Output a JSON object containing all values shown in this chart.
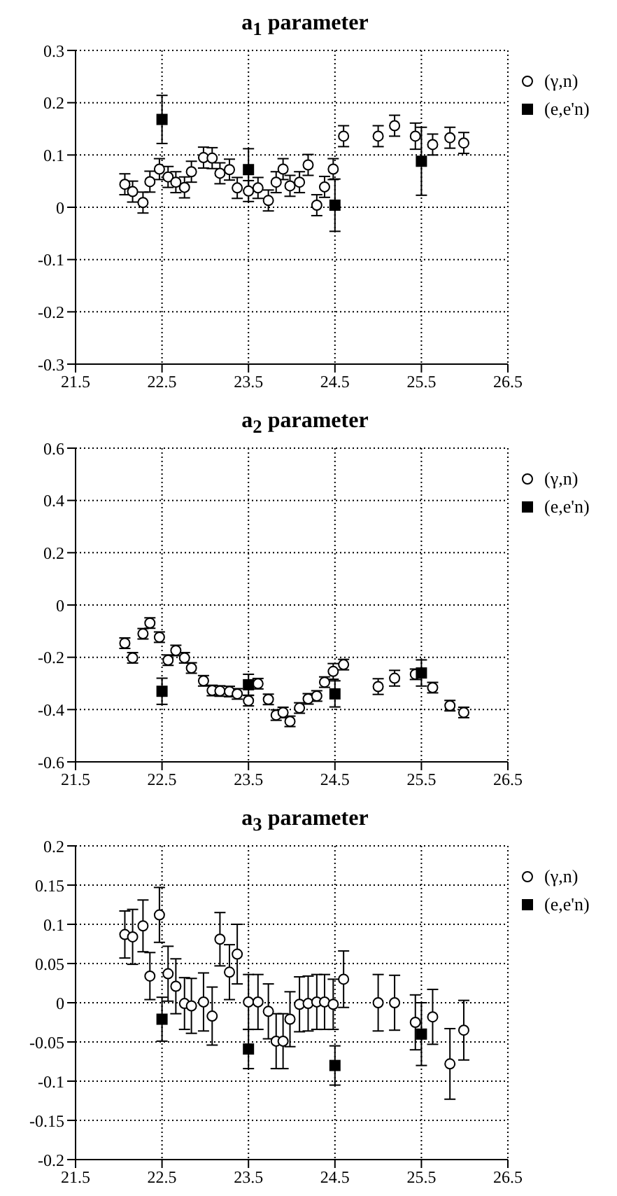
{
  "chart_data": [
    {
      "type": "scatter",
      "title": "a$_{1}$ parameter",
      "xlim": [
        21.5,
        26.5
      ],
      "xticks": [
        21.5,
        22.5,
        23.5,
        24.5,
        25.5,
        26.5
      ],
      "ylim": [
        -0.3,
        0.3
      ],
      "yticks": [
        -0.3,
        -0.2,
        -0.1,
        0,
        0.1,
        0.2,
        0.3
      ],
      "grid": true,
      "legend": "top right",
      "series": [
        {
          "name": "(γ,n)",
          "color": "#000000",
          "marker": "circle",
          "x": [
            22.07,
            22.16,
            22.28,
            22.36,
            22.47,
            22.57,
            22.66,
            22.76,
            22.84,
            22.98,
            23.08,
            23.17,
            23.28,
            23.37,
            23.5,
            23.61,
            23.73,
            23.82,
            23.9,
            23.98,
            24.09,
            24.19,
            24.29,
            24.38,
            24.48,
            24.6,
            25,
            25.19,
            25.43,
            25.63,
            25.83,
            25.99
          ],
          "values": [
            0.044,
            0.03,
            0.009,
            0.049,
            0.073,
            0.058,
            0.048,
            0.038,
            0.068,
            0.095,
            0.094,
            0.065,
            0.072,
            0.037,
            0.031,
            0.037,
            0.013,
            0.048,
            0.073,
            0.041,
            0.048,
            0.081,
            0.004,
            0.039,
            0.073,
            0.136,
            0.136,
            0.156,
            0.136,
            0.12,
            0.133,
            0.123
          ],
          "errors": [
            0.02,
            0.02,
            0.02,
            0.02,
            0.02,
            0.02,
            0.02,
            0.02,
            0.02,
            0.02,
            0.02,
            0.02,
            0.02,
            0.02,
            0.02,
            0.02,
            0.02,
            0.02,
            0.02,
            0.02,
            0.02,
            0.02,
            0.02,
            0.02,
            0.02,
            0.02,
            0.02,
            0.02,
            0.025,
            0.02,
            0.02,
            0.02
          ]
        },
        {
          "name": "(e,e'n)",
          "color": "#000000",
          "marker": "square",
          "x": [
            22.5,
            23.5,
            24.5,
            25.5
          ],
          "values": [
            0.168,
            0.072,
            0.004,
            0.088
          ],
          "errors": [
            0.046,
            0.04,
            0.05,
            0.065
          ]
        }
      ]
    },
    {
      "type": "scatter",
      "title": "a$_{2}$ parameter",
      "xlim": [
        21.5,
        26.5
      ],
      "xticks": [
        21.5,
        22.5,
        23.5,
        24.5,
        25.5,
        26.5
      ],
      "ylim": [
        -0.6,
        0.6
      ],
      "yticks": [
        -0.6,
        -0.4,
        -0.2,
        0,
        0.2,
        0.4,
        0.6
      ],
      "grid": true,
      "legend": "top right",
      "series": [
        {
          "name": "(γ,n)",
          "color": "#000000",
          "marker": "circle",
          "x": [
            22.07,
            22.16,
            22.28,
            22.36,
            22.47,
            22.57,
            22.66,
            22.76,
            22.84,
            22.98,
            23.08,
            23.17,
            23.28,
            23.37,
            23.5,
            23.61,
            23.73,
            23.82,
            23.9,
            23.98,
            24.09,
            24.19,
            24.29,
            24.38,
            24.48,
            24.6,
            25,
            25.19,
            25.43,
            25.63,
            25.83,
            25.99
          ],
          "values": [
            -0.146,
            -0.202,
            -0.11,
            -0.069,
            -0.123,
            -0.211,
            -0.174,
            -0.202,
            -0.241,
            -0.29,
            -0.327,
            -0.329,
            -0.331,
            -0.34,
            -0.366,
            -0.301,
            -0.361,
            -0.421,
            -0.411,
            -0.445,
            -0.394,
            -0.359,
            -0.348,
            -0.295,
            -0.254,
            -0.228,
            -0.312,
            -0.28,
            -0.265,
            -0.316,
            -0.385,
            -0.411
          ],
          "errors": [
            0.02,
            0.02,
            0.02,
            0.02,
            0.02,
            0.02,
            0.02,
            0.02,
            0.02,
            0.02,
            0.02,
            0.02,
            0.02,
            0.02,
            0.02,
            0.02,
            0.02,
            0.02,
            0.02,
            0.02,
            0.02,
            0.02,
            0.02,
            0.02,
            0.03,
            0.02,
            0.03,
            0.03,
            0.02,
            0.02,
            0.02,
            0.02
          ]
        },
        {
          "name": "(e,e'n)",
          "color": "#000000",
          "marker": "square",
          "x": [
            22.5,
            23.5,
            24.5,
            25.5
          ],
          "values": [
            -0.33,
            -0.305,
            -0.34,
            -0.26
          ],
          "errors": [
            0.05,
            0.04,
            0.05,
            0.05
          ]
        }
      ]
    },
    {
      "type": "scatter",
      "title": "a$_{3}$ parameter",
      "xlim": [
        21.5,
        26.5
      ],
      "xticks": [
        21.5,
        22.5,
        23.5,
        24.5,
        25.5,
        26.5
      ],
      "ylim": [
        -0.2,
        0.2
      ],
      "yticks": [
        -0.2,
        -0.15,
        -0.1,
        -0.05,
        0,
        0.05,
        0.1,
        0.15,
        0.2
      ],
      "grid": true,
      "legend": "top right",
      "series": [
        {
          "name": "(γ,n)",
          "color": "#000000",
          "marker": "circle",
          "x": [
            22.07,
            22.16,
            22.28,
            22.36,
            22.47,
            22.57,
            22.66,
            22.76,
            22.84,
            22.98,
            23.08,
            23.17,
            23.28,
            23.37,
            23.5,
            23.61,
            23.73,
            23.82,
            23.9,
            23.98,
            24.09,
            24.19,
            24.29,
            24.38,
            24.48,
            24.6,
            25,
            25.19,
            25.43,
            25.63,
            25.83,
            25.99
          ],
          "values": [
            0.087,
            0.084,
            0.098,
            0.034,
            0.112,
            0.037,
            0.021,
            -0.001,
            -0.004,
            0.001,
            -0.017,
            0.081,
            0.039,
            0.062,
            0.001,
            0.001,
            -0.011,
            -0.049,
            -0.049,
            -0.021,
            -0.002,
            -0.001,
            0.001,
            0.001,
            -0.002,
            0.03,
            0,
            0,
            -0.025,
            -0.018,
            -0.078,
            -0.035
          ],
          "errors": [
            0.03,
            0.035,
            0.033,
            0.03,
            0.035,
            0.035,
            0.035,
            0.033,
            0.035,
            0.037,
            0.037,
            0.034,
            0.035,
            0.038,
            0.035,
            0.035,
            0.035,
            0.035,
            0.035,
            0.035,
            0.035,
            0.035,
            0.035,
            0.035,
            0.032,
            0.036,
            0.036,
            0.035,
            0.035,
            0.035,
            0.045,
            0.038
          ]
        },
        {
          "name": "(e,e'n)",
          "color": "#000000",
          "marker": "square",
          "x": [
            22.5,
            23.5,
            24.5,
            25.5
          ],
          "values": [
            -0.021,
            -0.059,
            -0.08,
            -0.04
          ],
          "errors": [
            0.028,
            0.025,
            0.025,
            0.04
          ]
        }
      ]
    }
  ]
}
